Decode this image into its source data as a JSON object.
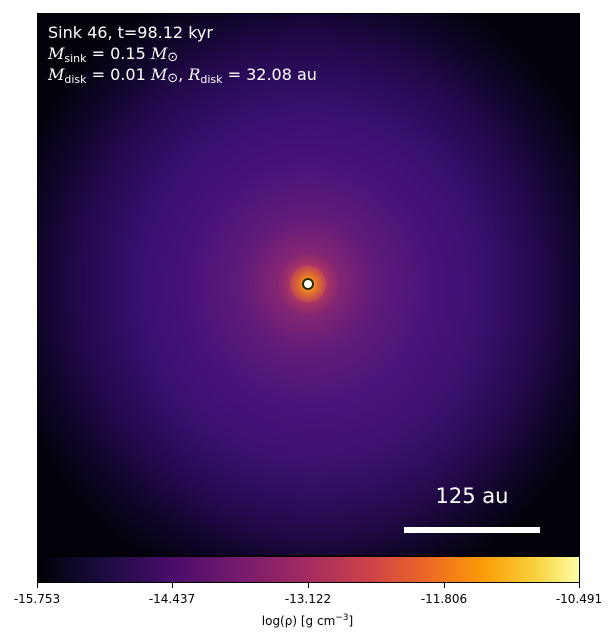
{
  "annotation": {
    "line1": "Sink 46, t=98.12 kyr",
    "m_sink_symbol": "M",
    "m_sink_sub": "sink",
    "m_sink_value": "= 0.15",
    "m_disk_symbol": "M",
    "m_disk_sub": "disk",
    "m_disk_value": "= 0.01",
    "r_disk_symbol": "R",
    "r_disk_sub": "disk",
    "r_disk_value": "= 32.08 au",
    "solar_symbol": "⊙"
  },
  "scalebar": {
    "label": "125 au"
  },
  "colorbar": {
    "label_main": "log(ρ) [g cm",
    "label_exp": "−3",
    "label_end": "]",
    "ticks": [
      "-15.753",
      "-14.437",
      "-13.122",
      "-11.806",
      "-10.491"
    ],
    "colormap": "inferno"
  }
}
